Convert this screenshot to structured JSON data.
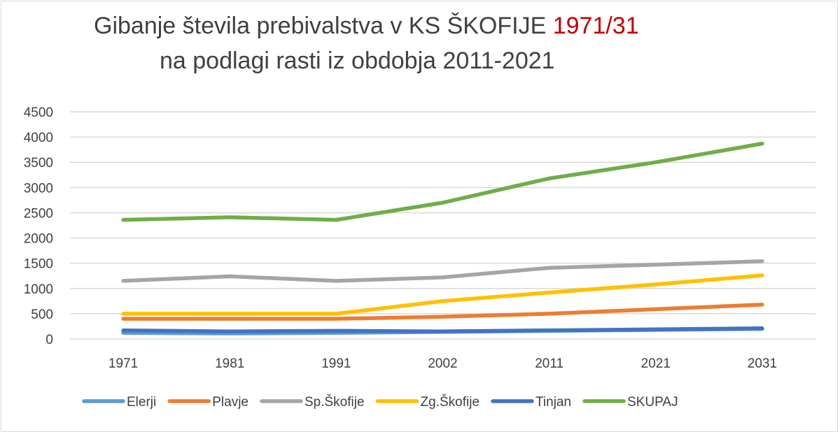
{
  "chart_data": {
    "type": "line",
    "title_line1": "Gibanje števila prebivalstva v KS ŠKOFIJE ",
    "title_highlight": "1971/31",
    "title_line2": "na podlagi rasti iz obdobja 2011-2021",
    "highlight_color": "#c00000",
    "categories": [
      "1971",
      "1981",
      "1991",
      "2002",
      "2011",
      "2021",
      "2031"
    ],
    "ylim": [
      0,
      4500
    ],
    "yticks": [
      0,
      500,
      1000,
      1500,
      2000,
      2500,
      3000,
      3500,
      4000,
      4500
    ],
    "grid": true,
    "legend_position": "bottom",
    "series": [
      {
        "name": "Elerji",
        "color": "#5b9bd5",
        "values": [
          120,
          110,
          120,
          140,
          160,
          180,
          200
        ]
      },
      {
        "name": "Plavje",
        "color": "#ed7d31",
        "values": [
          400,
          400,
          400,
          440,
          500,
          590,
          680
        ]
      },
      {
        "name": "Sp.Škofije",
        "color": "#a5a5a5",
        "values": [
          1150,
          1240,
          1150,
          1220,
          1410,
          1470,
          1540
        ]
      },
      {
        "name": "Zg.Škofije",
        "color": "#ffc000",
        "values": [
          500,
          500,
          500,
          750,
          920,
          1080,
          1260
        ]
      },
      {
        "name": "Tinjan",
        "color": "#4472c4",
        "values": [
          170,
          150,
          160,
          150,
          170,
          190,
          210
        ]
      },
      {
        "name": "SKUPAJ",
        "color": "#70ad47",
        "values": [
          2360,
          2410,
          2360,
          2700,
          3180,
          3500,
          3870
        ]
      }
    ]
  }
}
